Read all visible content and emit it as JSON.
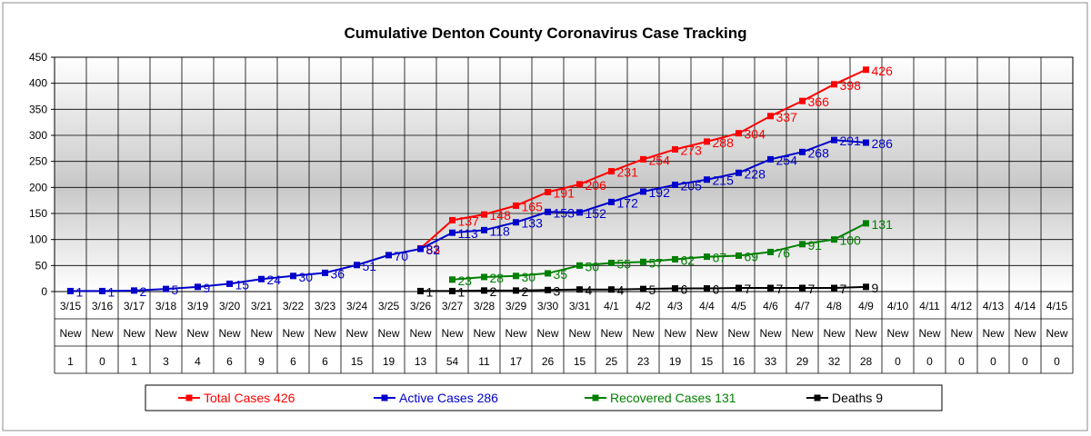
{
  "chart_data": {
    "type": "line",
    "title": "Cumulative Denton County Coronavirus Case Tracking",
    "ylim": [
      0,
      450
    ],
    "yticks": [
      0,
      50,
      100,
      150,
      200,
      250,
      300,
      350,
      400,
      450
    ],
    "grid": true,
    "legend_position": "bottom",
    "categories": [
      "3/15",
      "3/16",
      "3/17",
      "3/18",
      "3/19",
      "3/20",
      "3/21",
      "3/22",
      "3/23",
      "3/24",
      "3/25",
      "3/26",
      "3/27",
      "3/28",
      "3/29",
      "3/30",
      "3/31",
      "4/1",
      "4/2",
      "4/3",
      "4/4",
      "4/5",
      "4/6",
      "4/7",
      "4/8",
      "4/9",
      "4/10",
      "4/11",
      "4/12",
      "4/13",
      "4/14",
      "4/15"
    ],
    "table_row_label": "New",
    "new_cases": [
      1,
      0,
      1,
      3,
      4,
      6,
      9,
      6,
      6,
      15,
      19,
      13,
      54,
      11,
      17,
      26,
      15,
      25,
      23,
      19,
      15,
      16,
      33,
      29,
      32,
      28,
      0,
      0,
      0,
      0,
      0,
      0
    ],
    "series": [
      {
        "name": "Total Cases",
        "legend_label": "Total Cases 426",
        "color": "#ff0000",
        "values": [
          null,
          null,
          null,
          null,
          null,
          null,
          null,
          null,
          null,
          null,
          null,
          83,
          137,
          148,
          165,
          191,
          206,
          231,
          254,
          273,
          288,
          304,
          337,
          366,
          398,
          426,
          null,
          null,
          null,
          null,
          null,
          null
        ]
      },
      {
        "name": "Active Cases",
        "legend_label": "Active Cases 286",
        "color": "#0000cc",
        "values": [
          1,
          1,
          2,
          5,
          9,
          15,
          24,
          30,
          36,
          51,
          70,
          82,
          113,
          118,
          133,
          153,
          152,
          172,
          192,
          205,
          215,
          228,
          254,
          268,
          291,
          286,
          null,
          null,
          null,
          null,
          null,
          null
        ]
      },
      {
        "name": "Recovered Cases",
        "legend_label": "Recovered Cases 131",
        "color": "#008000",
        "values": [
          null,
          null,
          null,
          null,
          null,
          null,
          null,
          null,
          null,
          null,
          null,
          null,
          23,
          28,
          30,
          35,
          50,
          55,
          57,
          62,
          67,
          69,
          76,
          91,
          100,
          131,
          null,
          null,
          null,
          null,
          null,
          null
        ]
      },
      {
        "name": "Deaths",
        "legend_label": "Deaths 9",
        "color": "#000000",
        "values": [
          null,
          null,
          null,
          null,
          null,
          null,
          null,
          null,
          null,
          null,
          null,
          1,
          1,
          2,
          2,
          3,
          4,
          4,
          5,
          6,
          6,
          7,
          7,
          7,
          7,
          9,
          null,
          null,
          null,
          null,
          null,
          null
        ]
      }
    ]
  }
}
